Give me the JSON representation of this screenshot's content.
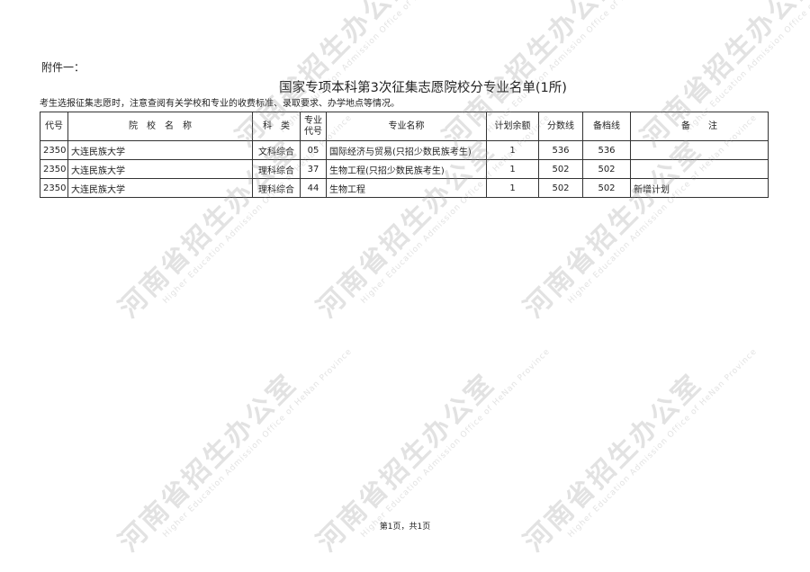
{
  "attachment_label": "附件一：",
  "title": "国家专项本科第3次征集志愿院校分专业名单(1所)",
  "notice": "考生选报征集志愿时，注意查阅有关学校和专业的收费标准、录取要求、办学地点等情况。",
  "table": {
    "headers": [
      "代号",
      "院　校　名　称",
      "科　类",
      "专业代号",
      "专业名称",
      "计划余额",
      "分数线",
      "备档线",
      "备　　注"
    ],
    "rows": [
      [
        "2350",
        "大连民族大学",
        "文科综合",
        "05",
        "国际经济与贸易(只招少数民族考生)",
        "1",
        "536",
        "536",
        ""
      ],
      [
        "2350",
        "大连民族大学",
        "理科综合",
        "37",
        "生物工程(只招少数民族考生)",
        "1",
        "502",
        "502",
        ""
      ],
      [
        "2350",
        "大连民族大学",
        "理科综合",
        "44",
        "生物工程",
        "1",
        "502",
        "502",
        "新增计划"
      ]
    ]
  },
  "footer": "第1页，共1页",
  "watermark": {
    "cn": "河南省招生办公室",
    "en": "Higher Education Admission Office of HeNan Province"
  }
}
